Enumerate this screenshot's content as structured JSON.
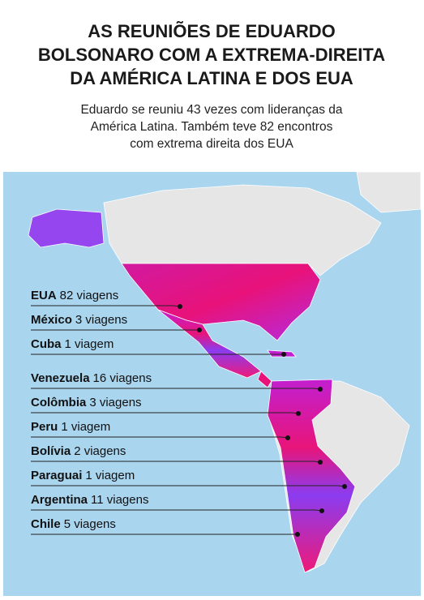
{
  "header": {
    "title": [
      "AS REUNIÕES DE EDUARDO",
      "BOLSONARO COM A EXTREMA-DIREITA",
      "DA AMÉRICA LATINA E DOS EUA"
    ],
    "subtitle": [
      "Eduardo se reuniu 43 vezes com lideranças da",
      "América Latina. Também teve 82 encontros",
      "com extrema direita dos EUA"
    ]
  },
  "countries": [
    {
      "name": "EUA",
      "trips": "82 viagens"
    },
    {
      "name": "México",
      "trips": "3 viagens"
    },
    {
      "name": "Cuba",
      "trips": "1 viagem"
    },
    {
      "name": "Venezuela",
      "trips": "16  viagens"
    },
    {
      "name": "Colômbia",
      "trips": "3 viagens"
    },
    {
      "name": "Peru",
      "trips": "1 viagem"
    },
    {
      "name": "Bolívia",
      "trips": "2 viagens"
    },
    {
      "name": "Paraguai",
      "trips": "1 viagem"
    },
    {
      "name": "Argentina",
      "trips": "11 viagens"
    },
    {
      "name": "Chile",
      "trips": "5 viagens"
    }
  ]
}
